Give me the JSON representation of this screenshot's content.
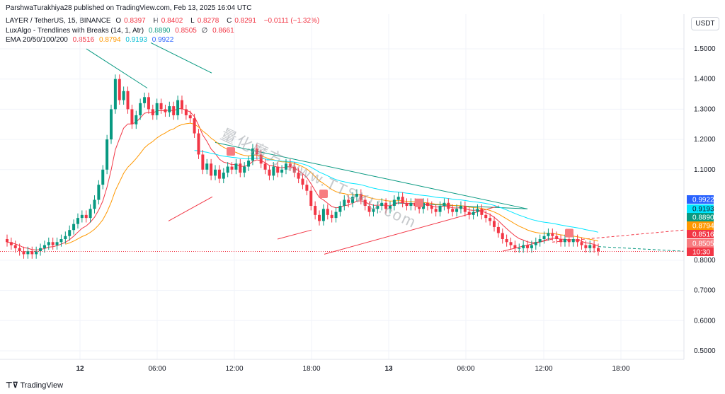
{
  "header": {
    "published": "ParshwaTurakhiya28 published on TradingView.com, Feb 13, 2025 16:04 UTC"
  },
  "legend": {
    "symbol_line": "LAYER / TetherUS, 15, BINANCE",
    "ohlc": {
      "o_label": "O",
      "o": "0.8397",
      "h_label": "H",
      "h": "0.8402",
      "l_label": "L",
      "l": "0.8278",
      "c_label": "C",
      "c": "0.8291",
      "change": "−0.0111 (−1.32%)"
    },
    "luxalgo_label": "LuxAlgo - Trendlines with Breaks (14, 1, Atr)",
    "luxalgo_values": [
      "0.8890",
      "0.8505",
      "∅",
      "0.8661"
    ],
    "ema_label": "EMA 20/50/100/200",
    "ema_values": [
      "0.8516",
      "0.8794",
      "0.9193",
      "0.9922"
    ]
  },
  "price_scale_button": "USDT",
  "footer": {
    "logo_glyph": "⊤⊽",
    "logo_text": "TradingView"
  },
  "watermark": "量化魔方 www.TTSKU.com",
  "colors": {
    "up": "#089981",
    "down": "#f23645",
    "ema20": "#f23645",
    "ema50": "#ff9800",
    "ema100": "#00e5ff",
    "ema200": "#2962ff",
    "trend_up_line": "#089981",
    "trend_down_line": "#f23645",
    "grid": "#f0f3fa",
    "last_price_line": "#f23645"
  },
  "chart_data": {
    "type": "candlestick",
    "symbol": "LAYER / TetherUS",
    "interval": "15",
    "exchange": "BINANCE",
    "x_ticks": [
      "12",
      "06:00",
      "12:00",
      "18:00",
      "13",
      "06:00",
      "12:00",
      "18:00"
    ],
    "y_ticks": [
      "1.5000",
      "1.4000",
      "1.3000",
      "1.2000",
      "1.1000",
      "0.8000",
      "0.7000",
      "0.6000",
      "0.5000"
    ],
    "y_range": [
      0.45,
      1.6
    ],
    "price_tags": [
      {
        "label": "0.9922",
        "value": 0.9922,
        "color": "#2962ff",
        "text_color": "#ffffff"
      },
      {
        "label": "0.9193",
        "value": 0.9193,
        "color": "#00e5ff",
        "text_color": "#131722"
      },
      {
        "label": "0.8890",
        "value": 0.889,
        "color": "#089981",
        "text_color": "#ffffff"
      },
      {
        "label": "0.8794",
        "value": 0.8794,
        "color": "#ff9800",
        "text_color": "#ffffff"
      },
      {
        "label": "0.8516",
        "value": 0.8516,
        "color": "#f23645",
        "text_color": "#ffffff"
      },
      {
        "label": "0.8505",
        "value": 0.8505,
        "color": "#f77c80",
        "text_color": "#ffffff"
      },
      {
        "label": "10:30",
        "value": 0.8291,
        "color": "#f23645",
        "text_color": "#ffffff"
      }
    ],
    "closes": [
      0.86,
      0.85,
      0.84,
      0.83,
      0.82,
      0.83,
      0.82,
      0.83,
      0.84,
      0.85,
      0.86,
      0.85,
      0.86,
      0.87,
      0.88,
      0.9,
      0.92,
      0.94,
      0.95,
      0.94,
      0.97,
      1.0,
      1.05,
      1.1,
      1.2,
      1.3,
      1.4,
      1.33,
      1.36,
      1.3,
      1.25,
      1.28,
      1.32,
      1.34,
      1.3,
      1.28,
      1.32,
      1.3,
      1.29,
      1.31,
      1.28,
      1.33,
      1.3,
      1.28,
      1.27,
      1.22,
      1.15,
      1.1,
      1.12,
      1.08,
      1.1,
      1.07,
      1.09,
      1.11,
      1.1,
      1.12,
      1.09,
      1.11,
      1.13,
      1.17,
      1.15,
      1.12,
      1.1,
      1.08,
      1.11,
      1.09,
      1.1,
      1.12,
      1.11,
      1.09,
      1.07,
      1.05,
      1.03,
      0.98,
      0.95,
      0.93,
      0.97,
      0.95,
      0.94,
      0.96,
      0.98,
      1.0,
      0.99,
      1.01,
      1.02,
      1.0,
      0.98,
      0.96,
      0.97,
      0.98,
      0.99,
      0.97,
      0.98,
      1.0,
      1.01,
      0.99,
      0.98,
      0.99,
      0.98,
      0.97,
      0.99,
      0.98,
      0.97,
      0.96,
      0.98,
      0.99,
      0.97,
      0.96,
      0.97,
      0.98,
      0.96,
      0.95,
      0.96,
      0.97,
      0.95,
      0.94,
      0.93,
      0.91,
      0.89,
      0.87,
      0.86,
      0.85,
      0.84,
      0.84,
      0.85,
      0.84,
      0.85,
      0.86,
      0.87,
      0.88,
      0.89,
      0.88,
      0.87,
      0.86,
      0.87,
      0.86,
      0.87,
      0.86,
      0.85,
      0.84,
      0.85,
      0.84,
      0.83
    ],
    "x_domain_start_bar": 0
  }
}
